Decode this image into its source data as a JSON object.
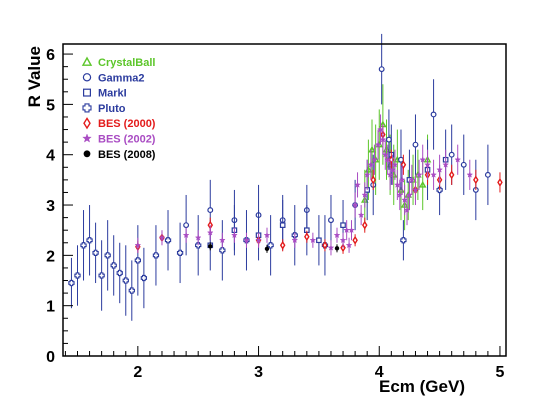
{
  "chart_data": {
    "type": "scatter",
    "title": "",
    "xlabel": "Ecm (GeV)",
    "ylabel": "R Value",
    "xlim": [
      1.38,
      5.05
    ],
    "ylim": [
      0,
      6.2
    ],
    "x_ticks": [
      "2",
      "3",
      "4",
      "5"
    ],
    "x_tick_values": [
      2,
      3,
      4,
      5
    ],
    "y_ticks": [
      "0",
      "1",
      "2",
      "3",
      "4",
      "5",
      "6"
    ],
    "y_tick_values": [
      0,
      1,
      2,
      3,
      4,
      5,
      6
    ],
    "grid": false,
    "legend_position": "top-left",
    "series": [
      {
        "name": "CrystalBall",
        "marker": "triangle",
        "color": "#5cc62a",
        "points": [
          [
            3.88,
            3.1,
            0.6
          ],
          [
            3.91,
            3.7,
            0.6
          ],
          [
            3.94,
            4.1,
            0.6
          ],
          [
            3.97,
            3.9,
            0.7
          ],
          [
            4.0,
            4.2,
            0.7
          ],
          [
            4.03,
            4.6,
            0.8
          ],
          [
            4.06,
            4.1,
            0.6
          ],
          [
            4.09,
            3.8,
            0.6
          ],
          [
            4.12,
            3.6,
            0.6
          ],
          [
            4.15,
            3.9,
            0.6
          ],
          [
            4.18,
            3.3,
            0.6
          ],
          [
            4.21,
            3.0,
            0.5
          ],
          [
            4.24,
            3.2,
            0.5
          ],
          [
            4.28,
            3.5,
            0.5
          ],
          [
            4.32,
            3.6,
            0.5
          ],
          [
            4.36,
            3.4,
            0.5
          ],
          [
            4.4,
            3.9,
            0.5
          ]
        ]
      },
      {
        "name": "Gamma2",
        "marker": "circle",
        "color": "#2b3b9e",
        "points": [
          [
            2.4,
            2.6,
            0.6
          ],
          [
            2.6,
            2.9,
            0.6
          ],
          [
            2.8,
            2.7,
            0.6
          ],
          [
            3.0,
            2.8,
            0.6
          ],
          [
            3.2,
            2.7,
            0.5
          ],
          [
            3.4,
            2.9,
            0.5
          ],
          [
            3.6,
            2.7,
            0.5
          ],
          [
            3.8,
            3.0,
            0.5
          ],
          [
            3.95,
            3.4,
            0.6
          ],
          [
            4.02,
            5.7,
            0.7
          ],
          [
            4.08,
            4.3,
            0.6
          ],
          [
            4.18,
            3.9,
            0.6
          ],
          [
            4.3,
            4.2,
            0.6
          ],
          [
            4.45,
            4.8,
            0.7
          ],
          [
            4.6,
            4.0,
            0.6
          ],
          [
            4.7,
            3.8,
            0.6
          ],
          [
            4.8,
            3.3,
            0.6
          ],
          [
            4.9,
            3.6,
            0.6
          ]
        ]
      },
      {
        "name": "MarkI",
        "marker": "square",
        "color": "#2b3b9e",
        "points": [
          [
            2.6,
            2.2,
            0.5
          ],
          [
            2.8,
            2.5,
            0.5
          ],
          [
            3.0,
            2.4,
            0.5
          ],
          [
            3.2,
            2.6,
            0.5
          ],
          [
            3.4,
            2.5,
            0.5
          ],
          [
            3.5,
            2.3,
            0.5
          ],
          [
            3.7,
            2.6,
            0.5
          ],
          [
            3.9,
            3.3,
            0.6
          ],
          [
            4.1,
            4.0,
            0.6
          ],
          [
            4.25,
            3.5,
            0.6
          ],
          [
            4.4,
            3.7,
            0.6
          ],
          [
            4.55,
            3.9,
            0.6
          ]
        ]
      },
      {
        "name": "Pluto",
        "marker": "cross",
        "color": "#2b3b9e",
        "points": [
          [
            1.45,
            1.45,
            0.5
          ],
          [
            1.5,
            1.6,
            0.6
          ],
          [
            1.55,
            2.2,
            0.7
          ],
          [
            1.6,
            2.3,
            0.7
          ],
          [
            1.65,
            2.05,
            0.6
          ],
          [
            1.7,
            1.6,
            0.7
          ],
          [
            1.75,
            2.0,
            0.7
          ],
          [
            1.8,
            1.8,
            0.6
          ],
          [
            1.85,
            1.65,
            0.6
          ],
          [
            1.9,
            1.5,
            0.7
          ],
          [
            1.95,
            1.3,
            0.6
          ],
          [
            2.0,
            1.9,
            0.7
          ],
          [
            2.05,
            1.55,
            0.6
          ],
          [
            2.15,
            2.0,
            0.6
          ],
          [
            2.25,
            2.3,
            0.6
          ],
          [
            2.35,
            2.05,
            0.6
          ],
          [
            2.5,
            2.2,
            0.6
          ],
          [
            2.7,
            2.1,
            0.6
          ],
          [
            2.9,
            2.3,
            0.6
          ],
          [
            3.1,
            2.2,
            0.6
          ],
          [
            3.3,
            2.4,
            0.6
          ],
          [
            3.55,
            2.2,
            0.6
          ],
          [
            4.2,
            2.3,
            0.4
          ],
          [
            4.5,
            3.3,
            0.5
          ]
        ]
      },
      {
        "name": "BES (2000)",
        "marker": "diamond",
        "color": "#e31b1b",
        "points": [
          [
            2.0,
            2.17,
            0.12
          ],
          [
            2.2,
            2.35,
            0.12
          ],
          [
            2.6,
            2.6,
            0.15
          ],
          [
            3.0,
            2.3,
            0.12
          ],
          [
            3.2,
            2.2,
            0.12
          ],
          [
            3.4,
            2.37,
            0.12
          ],
          [
            3.55,
            2.2,
            0.12
          ],
          [
            3.7,
            2.15,
            0.12
          ],
          [
            3.8,
            2.3,
            0.12
          ],
          [
            3.88,
            2.6,
            0.15
          ],
          [
            3.95,
            3.5,
            0.2
          ],
          [
            4.03,
            4.4,
            0.2
          ],
          [
            4.1,
            3.9,
            0.2
          ],
          [
            4.2,
            3.8,
            0.2
          ],
          [
            4.3,
            3.3,
            0.2
          ],
          [
            4.4,
            3.6,
            0.2
          ],
          [
            4.5,
            3.5,
            0.2
          ],
          [
            4.6,
            3.6,
            0.2
          ],
          [
            4.8,
            3.5,
            0.2
          ],
          [
            5.0,
            3.45,
            0.2
          ]
        ]
      },
      {
        "name": "BES (2002)",
        "marker": "star",
        "color": "#a94cc3",
        "points": [
          [
            2.0,
            2.2,
            0.15
          ],
          [
            2.2,
            2.35,
            0.15
          ],
          [
            2.4,
            2.4,
            0.15
          ],
          [
            2.5,
            2.35,
            0.15
          ],
          [
            2.6,
            2.45,
            0.15
          ],
          [
            2.7,
            2.3,
            0.15
          ],
          [
            2.8,
            2.4,
            0.15
          ],
          [
            2.9,
            2.3,
            0.15
          ],
          [
            3.0,
            2.3,
            0.15
          ],
          [
            3.07,
            2.4,
            0.15
          ],
          [
            3.3,
            2.3,
            0.15
          ],
          [
            3.45,
            2.3,
            0.15
          ],
          [
            3.6,
            2.15,
            0.15
          ],
          [
            3.65,
            2.4,
            0.15
          ],
          [
            3.7,
            2.3,
            0.15
          ],
          [
            3.73,
            2.5,
            0.2
          ],
          [
            3.75,
            2.2,
            0.15
          ],
          [
            3.77,
            2.5,
            0.2
          ],
          [
            3.8,
            3.0,
            0.25
          ],
          [
            3.82,
            3.4,
            0.25
          ],
          [
            3.85,
            2.8,
            0.2
          ],
          [
            3.88,
            3.2,
            0.25
          ],
          [
            3.9,
            3.6,
            0.3
          ],
          [
            3.93,
            3.8,
            0.3
          ],
          [
            3.96,
            3.9,
            0.3
          ],
          [
            3.99,
            4.2,
            0.3
          ],
          [
            4.01,
            4.5,
            0.3
          ],
          [
            4.03,
            4.3,
            0.3
          ],
          [
            4.05,
            4.0,
            0.3
          ],
          [
            4.07,
            3.9,
            0.3
          ],
          [
            4.09,
            3.6,
            0.3
          ],
          [
            4.11,
            3.7,
            0.3
          ],
          [
            4.13,
            3.8,
            0.3
          ],
          [
            4.15,
            3.4,
            0.3
          ],
          [
            4.17,
            3.2,
            0.3
          ],
          [
            4.19,
            3.5,
            0.3
          ],
          [
            4.21,
            3.1,
            0.3
          ],
          [
            4.23,
            2.9,
            0.3
          ],
          [
            4.25,
            3.2,
            0.3
          ],
          [
            4.27,
            3.5,
            0.3
          ],
          [
            4.3,
            3.3,
            0.3
          ],
          [
            4.33,
            3.6,
            0.3
          ],
          [
            4.36,
            3.9,
            0.3
          ],
          [
            4.4,
            3.8,
            0.3
          ],
          [
            4.45,
            3.6,
            0.3
          ],
          [
            4.5,
            3.7,
            0.3
          ],
          [
            4.55,
            3.8,
            0.3
          ],
          [
            4.65,
            3.9,
            0.3
          ],
          [
            4.75,
            3.6,
            0.3
          ]
        ]
      },
      {
        "name": "BES (2008)",
        "marker": "dot",
        "color": "#000000",
        "points": [
          [
            2.6,
            2.18,
            0.08
          ],
          [
            3.07,
            2.13,
            0.08
          ],
          [
            3.65,
            2.14,
            0.08
          ]
        ]
      }
    ]
  }
}
